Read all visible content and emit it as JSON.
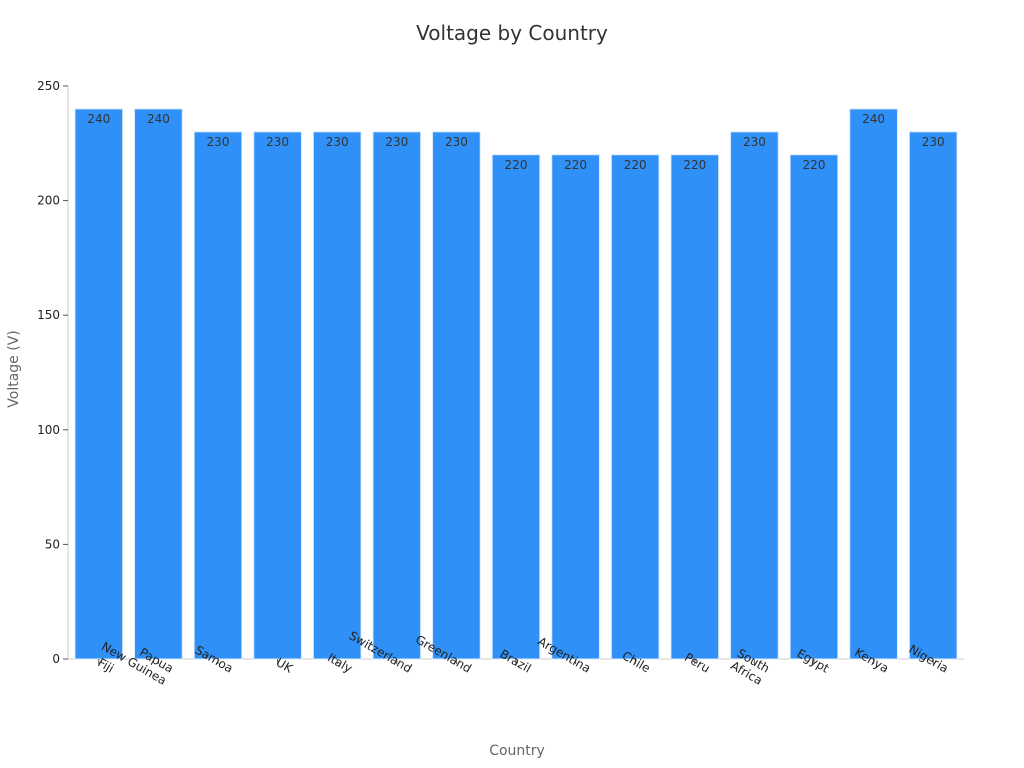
{
  "chart_data": {
    "type": "bar",
    "title": "Voltage by Country",
    "xlabel": "Country",
    "ylabel": "Voltage (V)",
    "ylim": [
      0,
      250
    ],
    "yticks": [
      0,
      50,
      100,
      150,
      200,
      250
    ],
    "grid": false,
    "categories": [
      [
        "Fiji"
      ],
      [
        "Papua",
        "New Guinea"
      ],
      [
        "Samoa"
      ],
      [
        "UK"
      ],
      [
        "Italy"
      ],
      [
        "Switzerland"
      ],
      [
        "Greenland"
      ],
      [
        "Brazil"
      ],
      [
        "Argentina"
      ],
      [
        "Chile"
      ],
      [
        "Peru"
      ],
      [
        "South",
        "Africa"
      ],
      [
        "Egypt"
      ],
      [
        "Kenya"
      ],
      [
        "Nigeria"
      ]
    ],
    "values": [
      240,
      240,
      230,
      230,
      230,
      230,
      230,
      220,
      220,
      220,
      220,
      230,
      220,
      240,
      230
    ],
    "bar_color": "#2f91f7",
    "bar_edge_color": "#d9e9fb"
  }
}
